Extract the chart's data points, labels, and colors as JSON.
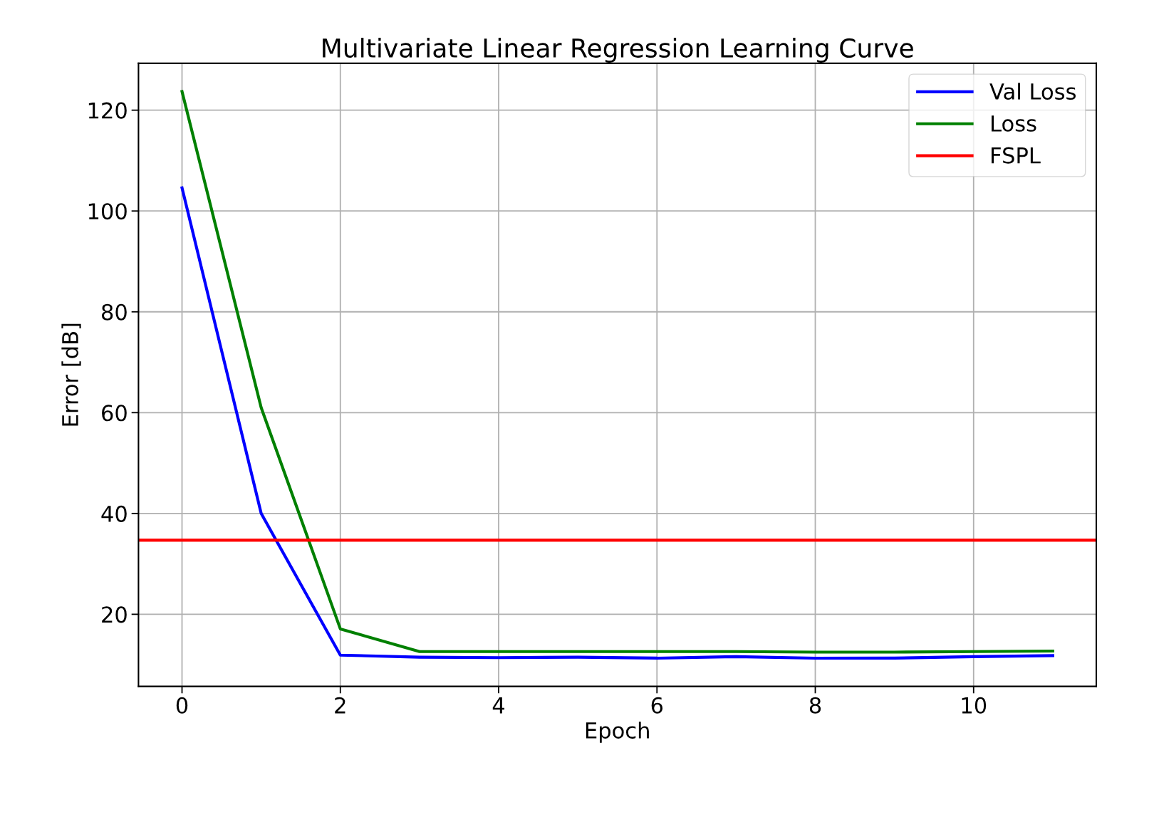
{
  "chart_data": {
    "type": "line",
    "title": "Multivariate Linear Regression Learning Curve",
    "xlabel": "Epoch",
    "ylabel": "Error [dB]",
    "x": [
      0,
      1,
      2,
      3,
      4,
      5,
      6,
      7,
      8,
      9,
      10,
      11
    ],
    "series": [
      {
        "name": "Val Loss",
        "color": "#0000ff",
        "values": [
          104.6,
          40.0,
          11.9,
          11.5,
          11.4,
          11.5,
          11.3,
          11.6,
          11.3,
          11.3,
          11.6,
          11.8
        ]
      },
      {
        "name": "Loss",
        "color": "#008000",
        "values": [
          123.7,
          61.0,
          17.1,
          12.6,
          12.6,
          12.6,
          12.6,
          12.6,
          12.5,
          12.5,
          12.6,
          12.7
        ]
      }
    ],
    "ref_lines": [
      {
        "axis": "y",
        "value": 34.7,
        "label": "FSPL",
        "color": "#ff0000"
      }
    ],
    "xlim": [
      -0.55,
      11.55
    ],
    "ylim": [
      5.7,
      129.3
    ],
    "xticks": [
      0,
      2,
      4,
      6,
      8,
      10
    ],
    "yticks": [
      20,
      40,
      60,
      80,
      100,
      120
    ],
    "grid": true,
    "legend": "top right"
  }
}
